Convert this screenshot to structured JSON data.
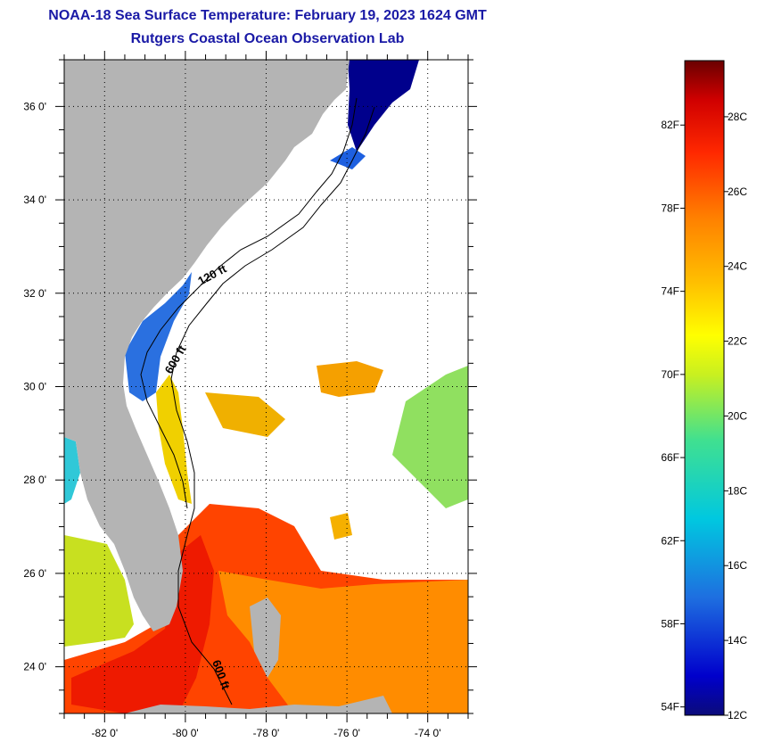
{
  "title": {
    "line1": "NOAA-18 Sea Surface Temperature:  February 19, 2023 1624 GMT",
    "line2": "Rutgers Coastal Ocean Observation Lab"
  },
  "map": {
    "lon_range": [
      -83.0,
      -73.0
    ],
    "lat_range": [
      23.0,
      37.0
    ],
    "lon_ticks": [
      {
        "value": -82,
        "label": "-82 0'"
      },
      {
        "value": -80,
        "label": "-80 0'"
      },
      {
        "value": -78,
        "label": "-78 0'"
      },
      {
        "value": -76,
        "label": "-76 0'"
      },
      {
        "value": -74,
        "label": "-74 0'"
      }
    ],
    "lat_ticks": [
      {
        "value": 24,
        "label": "24 0'"
      },
      {
        "value": 26,
        "label": "26 0'"
      },
      {
        "value": 28,
        "label": "28 0'"
      },
      {
        "value": 30,
        "label": "30 0'"
      },
      {
        "value": 32,
        "label": "32 0'"
      },
      {
        "value": 34,
        "label": "34 0'"
      },
      {
        "value": 36,
        "label": "36 0'"
      }
    ],
    "isobath_labels": [
      "120 ft",
      "600 ft",
      "600 ft"
    ],
    "colors": {
      "land": "#b4b4b4",
      "ocean_no_data": "#ffffff"
    }
  },
  "colorbar": {
    "fahrenheit_labels": [
      "54F",
      "58F",
      "62F",
      "66F",
      "70F",
      "74F",
      "78F",
      "82F"
    ],
    "celsius_labels": [
      "12C",
      "14C",
      "16C",
      "18C",
      "20C",
      "22C",
      "24C",
      "26C",
      "28C"
    ],
    "range_c": [
      12,
      29.5
    ]
  }
}
